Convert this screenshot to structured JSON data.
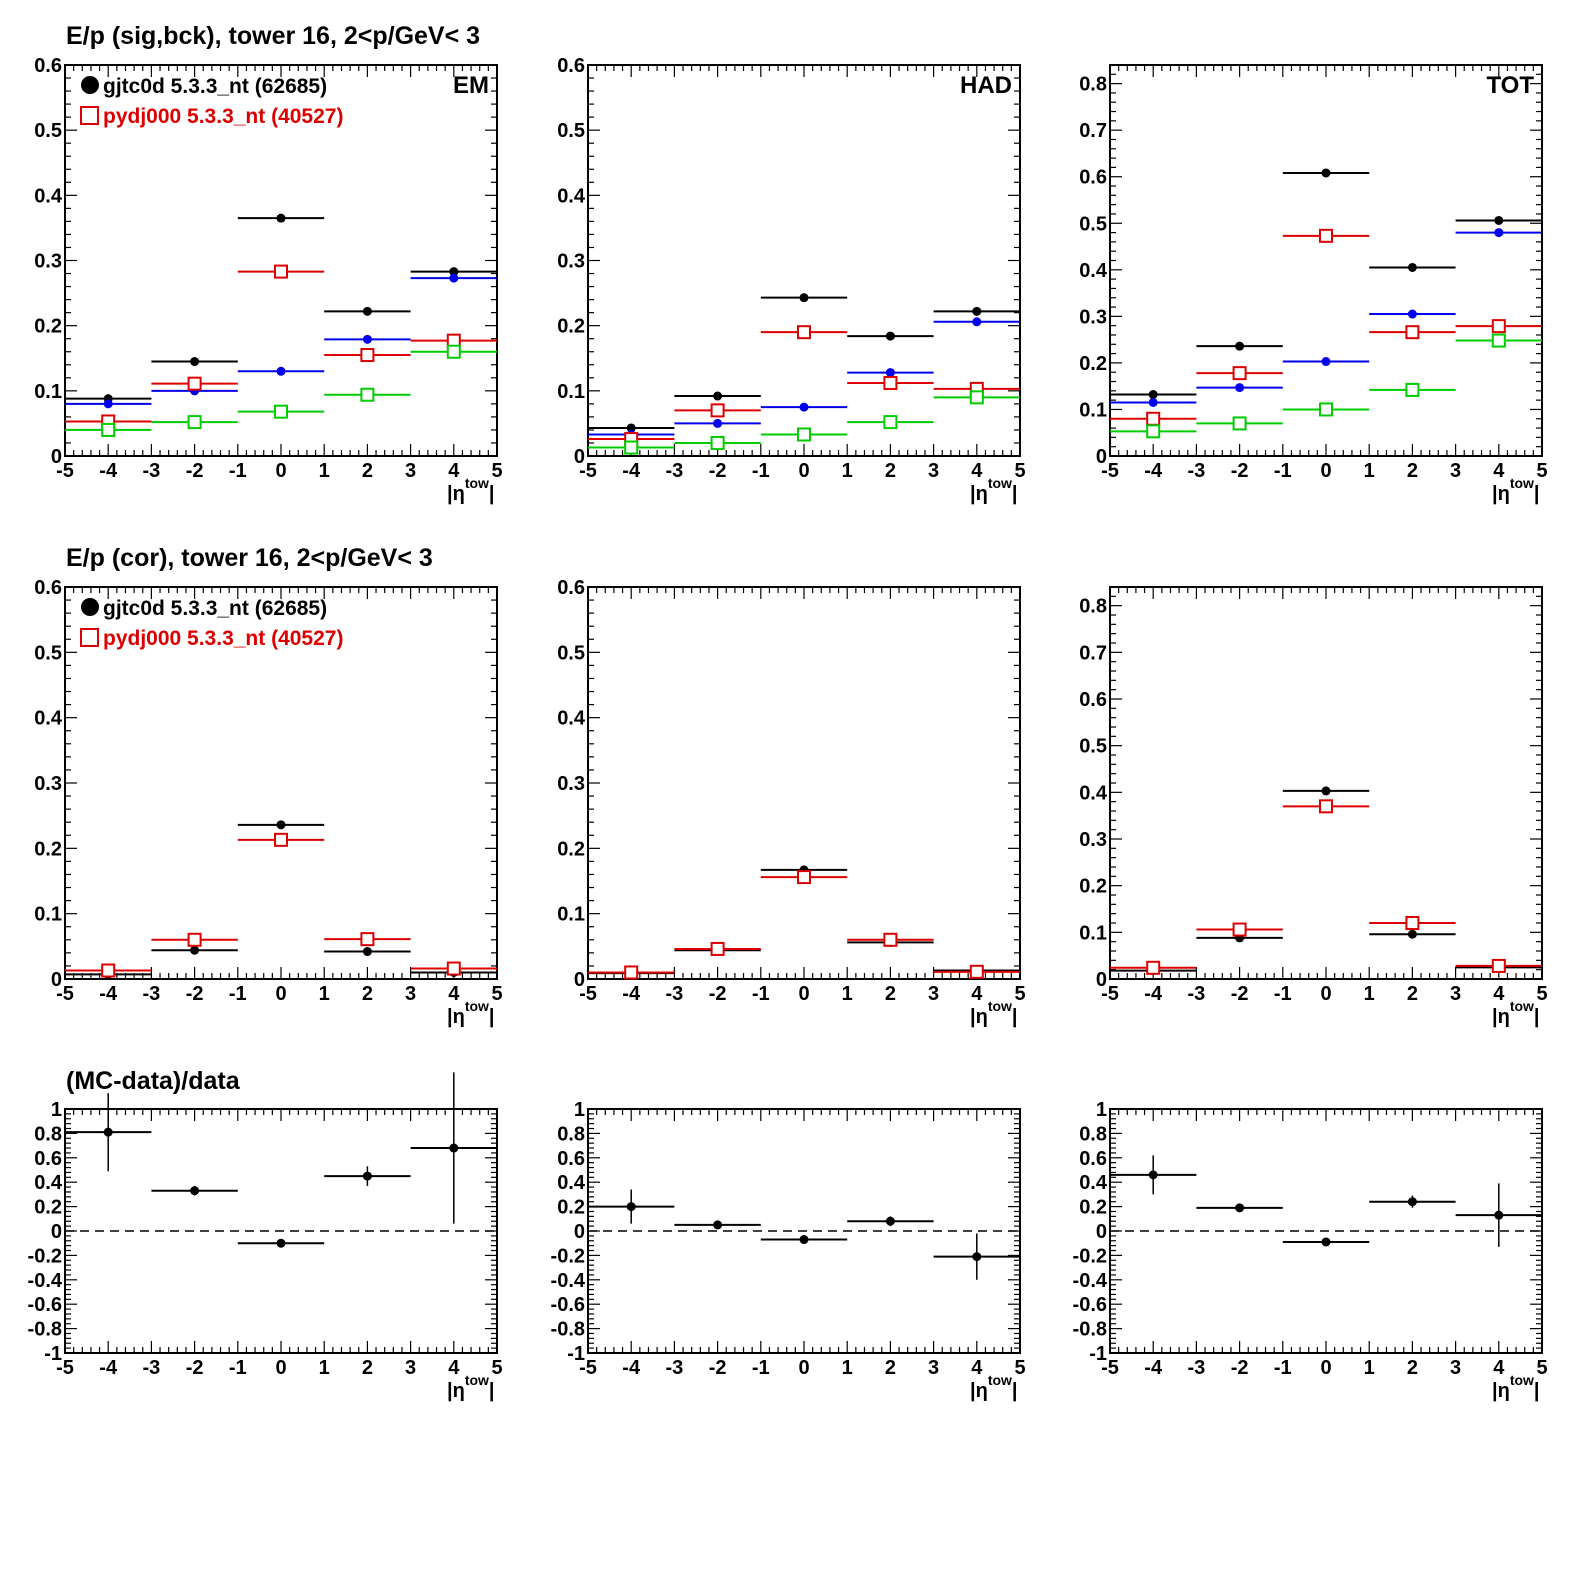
{
  "row_titles": [
    "E/p (sig,bck), tower 16,  2<p/GeV< 3",
    "E/p (cor), tower 16,  2<p/GeV< 3",
    "(MC-data)/data"
  ],
  "legend": {
    "data_label": "gjtc0d 5.3.3_nt (62685)",
    "mc_label": "pydj000 5.3.3_nt (40527)"
  },
  "colors": {
    "data": "#000000",
    "mc": "#dd0000",
    "blue": "#0000ee",
    "green": "#00cc00",
    "frame": "#000000"
  },
  "chart_data": [
    {
      "panel": "row1-col1",
      "type": "scatter",
      "tag": "EM",
      "show_legend": true,
      "xlabel": "|η^tow|",
      "xlim": [
        -5,
        5
      ],
      "ylim": [
        0,
        0.6
      ],
      "yticks": [
        "0",
        "0.1",
        "0.2",
        "0.3",
        "0.4",
        "0.5",
        "0.6"
      ],
      "series": [
        {
          "name": "gjtc0d 5.3.3_nt (62685)",
          "color": "black",
          "marker": "dot",
          "x": [
            -4,
            -2,
            0,
            2,
            4
          ],
          "y": [
            0.088,
            0.145,
            0.365,
            0.222,
            0.283
          ],
          "xerr": 1,
          "yerr": [
            0,
            0,
            0,
            0,
            0
          ]
        },
        {
          "color": "blue",
          "marker": "dot",
          "x": [
            -4,
            -2,
            0,
            2,
            4
          ],
          "y": [
            0.08,
            0.1,
            0.13,
            0.179,
            0.273
          ],
          "xerr": 1,
          "yerr": [
            0,
            0,
            0,
            0,
            0
          ]
        },
        {
          "name": "pydj000 5.3.3_nt (40527)",
          "color": "red",
          "marker": "square",
          "x": [
            -4,
            -2,
            0,
            2,
            4
          ],
          "y": [
            0.053,
            0.111,
            0.283,
            0.155,
            0.177
          ],
          "xerr": 1,
          "yerr": [
            0,
            0,
            0,
            0,
            0
          ]
        },
        {
          "color": "green",
          "marker": "square",
          "x": [
            -4,
            -2,
            0,
            2,
            4
          ],
          "y": [
            0.04,
            0.052,
            0.068,
            0.094,
            0.16
          ],
          "xerr": 1,
          "yerr": [
            0,
            0,
            0,
            0,
            0
          ]
        }
      ]
    },
    {
      "panel": "row1-col2",
      "type": "scatter",
      "tag": "HAD",
      "show_legend": false,
      "xlabel": "|η^tow|",
      "xlim": [
        -5,
        5
      ],
      "ylim": [
        0,
        0.6
      ],
      "yticks": [
        "0",
        "0.1",
        "0.2",
        "0.3",
        "0.4",
        "0.5",
        "0.6"
      ],
      "series": [
        {
          "color": "black",
          "marker": "dot",
          "x": [
            -4,
            -2,
            0,
            2,
            4
          ],
          "y": [
            0.043,
            0.092,
            0.243,
            0.184,
            0.222
          ],
          "xerr": 1,
          "yerr": [
            0,
            0,
            0,
            0,
            0
          ]
        },
        {
          "color": "blue",
          "marker": "dot",
          "x": [
            -4,
            -2,
            0,
            2,
            4
          ],
          "y": [
            0.033,
            0.05,
            0.075,
            0.128,
            0.206
          ],
          "xerr": 1,
          "yerr": [
            0,
            0,
            0,
            0,
            0
          ]
        },
        {
          "color": "red",
          "marker": "square",
          "x": [
            -4,
            -2,
            0,
            2,
            4
          ],
          "y": [
            0.026,
            0.07,
            0.19,
            0.112,
            0.103
          ],
          "xerr": 1,
          "yerr": [
            0,
            0,
            0,
            0,
            0
          ]
        },
        {
          "color": "green",
          "marker": "square",
          "x": [
            -4,
            -2,
            0,
            2,
            4
          ],
          "y": [
            0.013,
            0.02,
            0.033,
            0.052,
            0.09
          ],
          "xerr": 1,
          "yerr": [
            0,
            0,
            0,
            0,
            0
          ]
        }
      ]
    },
    {
      "panel": "row1-col3",
      "type": "scatter",
      "tag": "TOT",
      "show_legend": false,
      "xlabel": "|η^tow|",
      "xlim": [
        -5,
        5
      ],
      "ylim": [
        0,
        0.84
      ],
      "yticks": [
        "0",
        "0.1",
        "0.2",
        "0.3",
        "0.4",
        "0.5",
        "0.6",
        "0.7",
        "0.8"
      ],
      "series": [
        {
          "color": "black",
          "marker": "dot",
          "x": [
            -4,
            -2,
            0,
            2,
            4
          ],
          "y": [
            0.132,
            0.236,
            0.608,
            0.405,
            0.506
          ],
          "xerr": 1,
          "yerr": [
            0,
            0,
            0,
            0,
            0
          ]
        },
        {
          "color": "blue",
          "marker": "dot",
          "x": [
            -4,
            -2,
            0,
            2,
            4
          ],
          "y": [
            0.115,
            0.147,
            0.203,
            0.305,
            0.48
          ],
          "xerr": 1,
          "yerr": [
            0,
            0,
            0,
            0,
            0
          ]
        },
        {
          "color": "red",
          "marker": "square",
          "x": [
            -4,
            -2,
            0,
            2,
            4
          ],
          "y": [
            0.08,
            0.178,
            0.473,
            0.266,
            0.279
          ],
          "xerr": 1,
          "yerr": [
            0,
            0,
            0,
            0,
            0
          ]
        },
        {
          "color": "green",
          "marker": "square",
          "x": [
            -4,
            -2,
            0,
            2,
            4
          ],
          "y": [
            0.053,
            0.07,
            0.1,
            0.142,
            0.248
          ],
          "xerr": 1,
          "yerr": [
            0,
            0,
            0,
            0,
            0
          ]
        }
      ]
    },
    {
      "panel": "row2-col1",
      "type": "scatter",
      "tag": "",
      "show_legend": true,
      "xlabel": "|η^tow|",
      "xlim": [
        -5,
        5
      ],
      "ylim": [
        0,
        0.6
      ],
      "yticks": [
        "0",
        "0.1",
        "0.2",
        "0.3",
        "0.4",
        "0.5",
        "0.6"
      ],
      "series": [
        {
          "name": "gjtc0d 5.3.3_nt (62685)",
          "color": "black",
          "marker": "dot",
          "x": [
            -4,
            -2,
            0,
            2,
            4
          ],
          "y": [
            0.007,
            0.044,
            0.236,
            0.042,
            0.01
          ],
          "xerr": 1,
          "yerr": [
            0,
            0,
            0,
            0,
            0
          ]
        },
        {
          "name": "pydj000 5.3.3_nt (40527)",
          "color": "red",
          "marker": "square",
          "x": [
            -4,
            -2,
            0,
            2,
            4
          ],
          "y": [
            0.013,
            0.06,
            0.213,
            0.061,
            0.016
          ],
          "xerr": 1,
          "yerr": [
            0,
            0,
            0,
            0,
            0
          ]
        }
      ]
    },
    {
      "panel": "row2-col2",
      "type": "scatter",
      "tag": "",
      "show_legend": false,
      "xlabel": "|η^tow|",
      "xlim": [
        -5,
        5
      ],
      "ylim": [
        0,
        0.6
      ],
      "yticks": [
        "0",
        "0.1",
        "0.2",
        "0.3",
        "0.4",
        "0.5",
        "0.6"
      ],
      "series": [
        {
          "color": "black",
          "marker": "dot",
          "x": [
            -4,
            -2,
            0,
            2,
            4
          ],
          "y": [
            0.009,
            0.044,
            0.167,
            0.056,
            0.013
          ],
          "xerr": 1,
          "yerr": [
            0,
            0,
            0,
            0,
            0
          ]
        },
        {
          "color": "red",
          "marker": "square",
          "x": [
            -4,
            -2,
            0,
            2,
            4
          ],
          "y": [
            0.01,
            0.046,
            0.156,
            0.06,
            0.011
          ],
          "xerr": 1,
          "yerr": [
            0,
            0,
            0,
            0,
            0
          ]
        }
      ]
    },
    {
      "panel": "row2-col3",
      "type": "scatter",
      "tag": "",
      "show_legend": false,
      "xlabel": "|η^tow|",
      "xlim": [
        -5,
        5
      ],
      "ylim": [
        0,
        0.84
      ],
      "yticks": [
        "0",
        "0.1",
        "0.2",
        "0.3",
        "0.4",
        "0.5",
        "0.6",
        "0.7",
        "0.8"
      ],
      "series": [
        {
          "color": "black",
          "marker": "dot",
          "x": [
            -4,
            -2,
            0,
            2,
            4
          ],
          "y": [
            0.018,
            0.088,
            0.403,
            0.096,
            0.025
          ],
          "xerr": 1,
          "yerr": [
            0,
            0,
            0,
            0,
            0
          ]
        },
        {
          "color": "red",
          "marker": "square",
          "x": [
            -4,
            -2,
            0,
            2,
            4
          ],
          "y": [
            0.024,
            0.106,
            0.37,
            0.12,
            0.028
          ],
          "xerr": 1,
          "yerr": [
            0,
            0,
            0,
            0,
            0
          ]
        }
      ]
    },
    {
      "panel": "row3-col1",
      "type": "scatter",
      "tag": "",
      "show_legend": false,
      "xlabel": "|η^tow|",
      "xlim": [
        -5,
        5
      ],
      "ylim": [
        -1,
        1
      ],
      "zero_line": true,
      "yticks": [
        "-1",
        "-0.8",
        "-0.6",
        "-0.4",
        "-0.2",
        "0",
        "0.2",
        "0.4",
        "0.6",
        "0.8",
        "1"
      ],
      "series": [
        {
          "color": "black",
          "marker": "dot",
          "x": [
            -4,
            -2,
            0,
            2,
            4
          ],
          "y": [
            0.81,
            0.33,
            -0.1,
            0.45,
            0.68
          ],
          "xerr": 1,
          "yerr": [
            0.32,
            0.04,
            0.02,
            0.08,
            0.62
          ]
        }
      ]
    },
    {
      "panel": "row3-col2",
      "type": "scatter",
      "tag": "",
      "show_legend": false,
      "xlabel": "|η^tow|",
      "xlim": [
        -5,
        5
      ],
      "ylim": [
        -1,
        1
      ],
      "zero_line": true,
      "yticks": [
        "-1",
        "-0.8",
        "-0.6",
        "-0.4",
        "-0.2",
        "0",
        "0.2",
        "0.4",
        "0.6",
        "0.8",
        "1"
      ],
      "series": [
        {
          "color": "black",
          "marker": "dot",
          "x": [
            -4,
            -2,
            0,
            2,
            4
          ],
          "y": [
            0.2,
            0.05,
            -0.07,
            0.08,
            -0.21
          ],
          "xerr": 1,
          "yerr": [
            0.14,
            0.01,
            0.02,
            0.04,
            0.19
          ]
        }
      ]
    },
    {
      "panel": "row3-col3",
      "type": "scatter",
      "tag": "",
      "show_legend": false,
      "xlabel": "|η^tow|",
      "xlim": [
        -5,
        5
      ],
      "ylim": [
        -1,
        1
      ],
      "zero_line": true,
      "yticks": [
        "-1",
        "-0.8",
        "-0.6",
        "-0.4",
        "-0.2",
        "0",
        "0.2",
        "0.4",
        "0.6",
        "0.8",
        "1"
      ],
      "series": [
        {
          "color": "black",
          "marker": "dot",
          "x": [
            -4,
            -2,
            0,
            2,
            4
          ],
          "y": [
            0.46,
            0.19,
            -0.09,
            0.24,
            0.13
          ],
          "xerr": 1,
          "yerr": [
            0.16,
            0.02,
            0.02,
            0.05,
            0.26
          ]
        }
      ]
    }
  ],
  "xticks": [
    "-5",
    "-4",
    "-3",
    "-2",
    "-1",
    "0",
    "1",
    "2",
    "3",
    "4",
    "5"
  ],
  "xlabel_main": "|η",
  "xlabel_sup": "tow",
  "xlabel_end": "|"
}
